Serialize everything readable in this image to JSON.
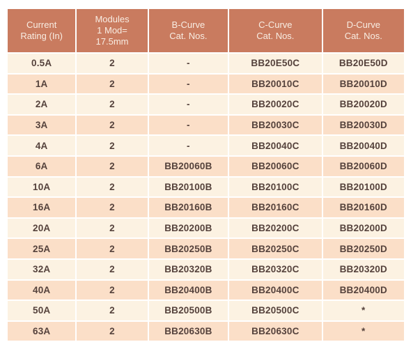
{
  "colors": {
    "header_bg": "#C97B5F",
    "header_text": "#F8EDE3",
    "row_even_bg": "#FCF2E2",
    "row_odd_bg": "#FBDFC8",
    "cell_text": "#55423C",
    "grid": "#FFFFFF"
  },
  "table": {
    "columns": [
      {
        "label": "Current\nRating (In)"
      },
      {
        "label": "Modules\n1 Mod=\n17.5mm"
      },
      {
        "label": "B-Curve\nCat. Nos."
      },
      {
        "label": "C-Curve\nCat. Nos."
      },
      {
        "label": "D-Curve\nCat. Nos."
      }
    ],
    "rows": [
      {
        "cells": [
          "0.5A",
          "2",
          "-",
          "BB20E50C",
          "BB20E50D"
        ]
      },
      {
        "cells": [
          "1A",
          "2",
          "-",
          "BB20010C",
          "BB20010D"
        ]
      },
      {
        "cells": [
          "2A",
          "2",
          "-",
          "BB20020C",
          "BB20020D"
        ]
      },
      {
        "cells": [
          "3A",
          "2",
          "-",
          "BB20030C",
          "BB20030D"
        ]
      },
      {
        "cells": [
          "4A",
          "2",
          "-",
          "BB20040C",
          "BB20040D"
        ]
      },
      {
        "cells": [
          "6A",
          "2",
          "BB20060B",
          "BB20060C",
          "BB20060D"
        ]
      },
      {
        "cells": [
          "10A",
          "2",
          "BB20100B",
          "BB20100C",
          "BB20100D"
        ]
      },
      {
        "cells": [
          "16A",
          "2",
          "BB20160B",
          "BB20160C",
          "BB20160D"
        ]
      },
      {
        "cells": [
          "20A",
          "2",
          "BB20200B",
          "BB20200C",
          "BB20200D"
        ]
      },
      {
        "cells": [
          "25A",
          "2",
          "BB20250B",
          "BB20250C",
          "BB20250D"
        ]
      },
      {
        "cells": [
          "32A",
          "2",
          "BB20320B",
          "BB20320C",
          "BB20320D"
        ]
      },
      {
        "cells": [
          "40A",
          "2",
          "BB20400B",
          "BB20400C",
          "BB20400D"
        ]
      },
      {
        "cells": [
          "50A",
          "2",
          "BB20500B",
          "BB20500C",
          "*"
        ]
      },
      {
        "cells": [
          "63A",
          "2",
          "BB20630B",
          "BB20630C",
          "*"
        ]
      }
    ]
  }
}
